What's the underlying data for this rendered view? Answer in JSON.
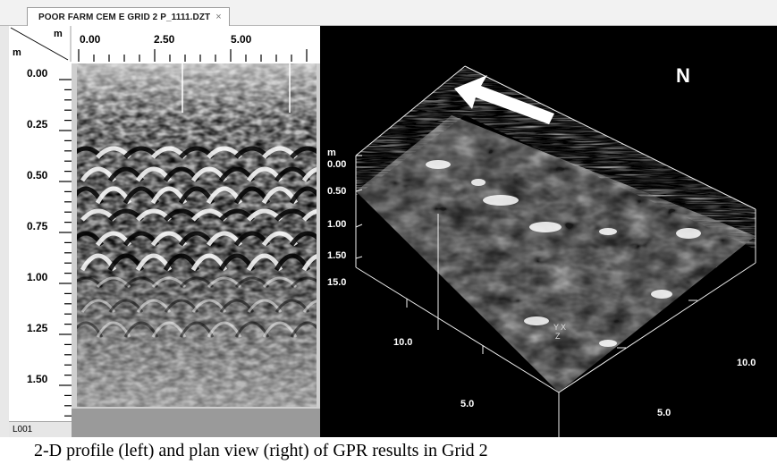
{
  "tab": {
    "title": "POOR FARM CEM E GRID 2 P_1111.DZT",
    "close": "×"
  },
  "profile": {
    "corner_x_unit": "m",
    "corner_y_unit": "m",
    "x_ticks": [
      "0.00",
      "2.50",
      "5.00"
    ],
    "y_ticks": [
      "0.00",
      "0.25",
      "0.50",
      "0.75",
      "1.00",
      "1.25",
      "1.50"
    ],
    "line_id": "L001"
  },
  "view3d": {
    "north_label": "N",
    "depth_unit": "m",
    "depth_ticks": [
      "0.00",
      "0.50",
      "1.00",
      "1.50"
    ],
    "left_axis_labels": [
      "15.0",
      "10.0",
      "5.0"
    ],
    "right_axis_labels": [
      "10.0",
      "5.0"
    ],
    "axis_glyph_y": "Y",
    "axis_glyph_x": "X",
    "axis_glyph_z": "Z"
  },
  "caption": "2-D profile (left) and plan view (right) of GPR results in Grid 2"
}
